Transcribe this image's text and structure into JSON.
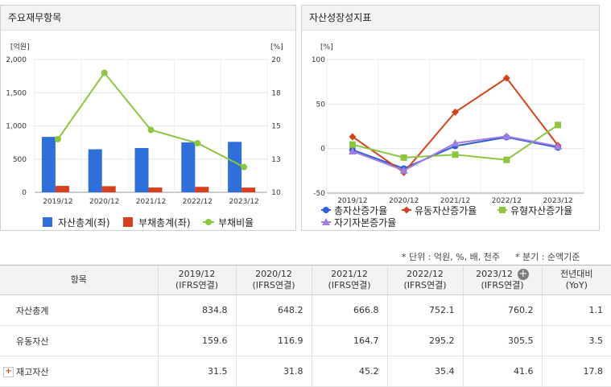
{
  "left_panel": {
    "title": "주요재무항목"
  },
  "right_panel": {
    "title": "자산성장성지표"
  },
  "notes": {
    "unit": "* 단위 : 억원, %, 배, 천주",
    "period": "* 분기 : 순액기준"
  },
  "chart_data": [
    {
      "type": "bar",
      "title": "주요재무항목",
      "categories": [
        "2019/12",
        "2020/12",
        "2021/12",
        "2022/12",
        "2023/12"
      ],
      "y_left_label": "[억원]",
      "y_right_label": "[%]",
      "y_left_ticks": [
        "2,000",
        "1,500",
        "1,000",
        "500",
        "0"
      ],
      "y_right_ticks": [
        "20",
        "18",
        "15",
        "13",
        "10"
      ],
      "ylim_left": [
        0,
        2000
      ],
      "ylim_right": [
        10,
        20
      ],
      "series": [
        {
          "name": "자산총계(좌)",
          "type": "bar",
          "axis": "left",
          "color": "#2f6fd9",
          "values": [
            834.8,
            648.2,
            666.8,
            752.1,
            760.2
          ]
        },
        {
          "name": "부채총계(좌)",
          "type": "bar",
          "axis": "left",
          "color": "#d6401f",
          "values": [
            96,
            92,
            72,
            82,
            71
          ]
        },
        {
          "name": "부채비율",
          "type": "line",
          "axis": "right",
          "color": "#8cc63f",
          "values": [
            14.0,
            19.0,
            14.7,
            13.7,
            11.9
          ]
        }
      ],
      "legend_position": "bottom"
    },
    {
      "type": "line",
      "title": "자산성장성지표",
      "categories": [
        "2019/12",
        "2020/12",
        "2021/12",
        "2022/12",
        "2023/12"
      ],
      "y_label": "[%]",
      "y_ticks": [
        "100",
        "50",
        "0",
        "-50"
      ],
      "ylim": [
        -50,
        100
      ],
      "series": [
        {
          "name": "총자산증가율",
          "marker": "circle",
          "color": "#2e5fd0",
          "values": [
            -1.5,
            -22.4,
            2.9,
            12.8,
            1.1
          ]
        },
        {
          "name": "유동자산증가율",
          "marker": "diamond",
          "color": "#d3441c",
          "values": [
            13.3,
            -26.8,
            40.9,
            79.2,
            3.5
          ]
        },
        {
          "name": "유형자산증가율",
          "marker": "square",
          "color": "#8cc63f",
          "values": [
            4.5,
            -10.1,
            -6.8,
            -12.7,
            26.5
          ]
        },
        {
          "name": "자기자본증가율",
          "marker": "triangle",
          "color": "#a07ee0",
          "values": [
            -3.0,
            -24.5,
            6.0,
            13.8,
            2.5
          ]
        }
      ],
      "legend_position": "bottom"
    }
  ],
  "table": {
    "header_item": "항목",
    "columns": [
      {
        "period": "2019/12",
        "basis": "(IFRS연결)"
      },
      {
        "period": "2020/12",
        "basis": "(IFRS연결)"
      },
      {
        "period": "2021/12",
        "basis": "(IFRS연결)"
      },
      {
        "period": "2022/12",
        "basis": "(IFRS연결)"
      },
      {
        "period": "2023/12",
        "basis": "(IFRS연결)"
      }
    ],
    "yoy_header": {
      "line1": "전년대비",
      "line2": "(YoY)"
    },
    "rows": [
      {
        "label": "자산총계",
        "values": [
          "834.8",
          "648.2",
          "666.8",
          "752.1",
          "760.2"
        ],
        "yoy": "1.1"
      },
      {
        "label": "유동자산",
        "values": [
          "159.6",
          "116.9",
          "164.7",
          "295.2",
          "305.5"
        ],
        "yoy": "3.5"
      },
      {
        "label": "재고자산",
        "values": [
          "31.5",
          "31.8",
          "45.2",
          "35.4",
          "41.6"
        ],
        "yoy": "17.8"
      }
    ]
  }
}
